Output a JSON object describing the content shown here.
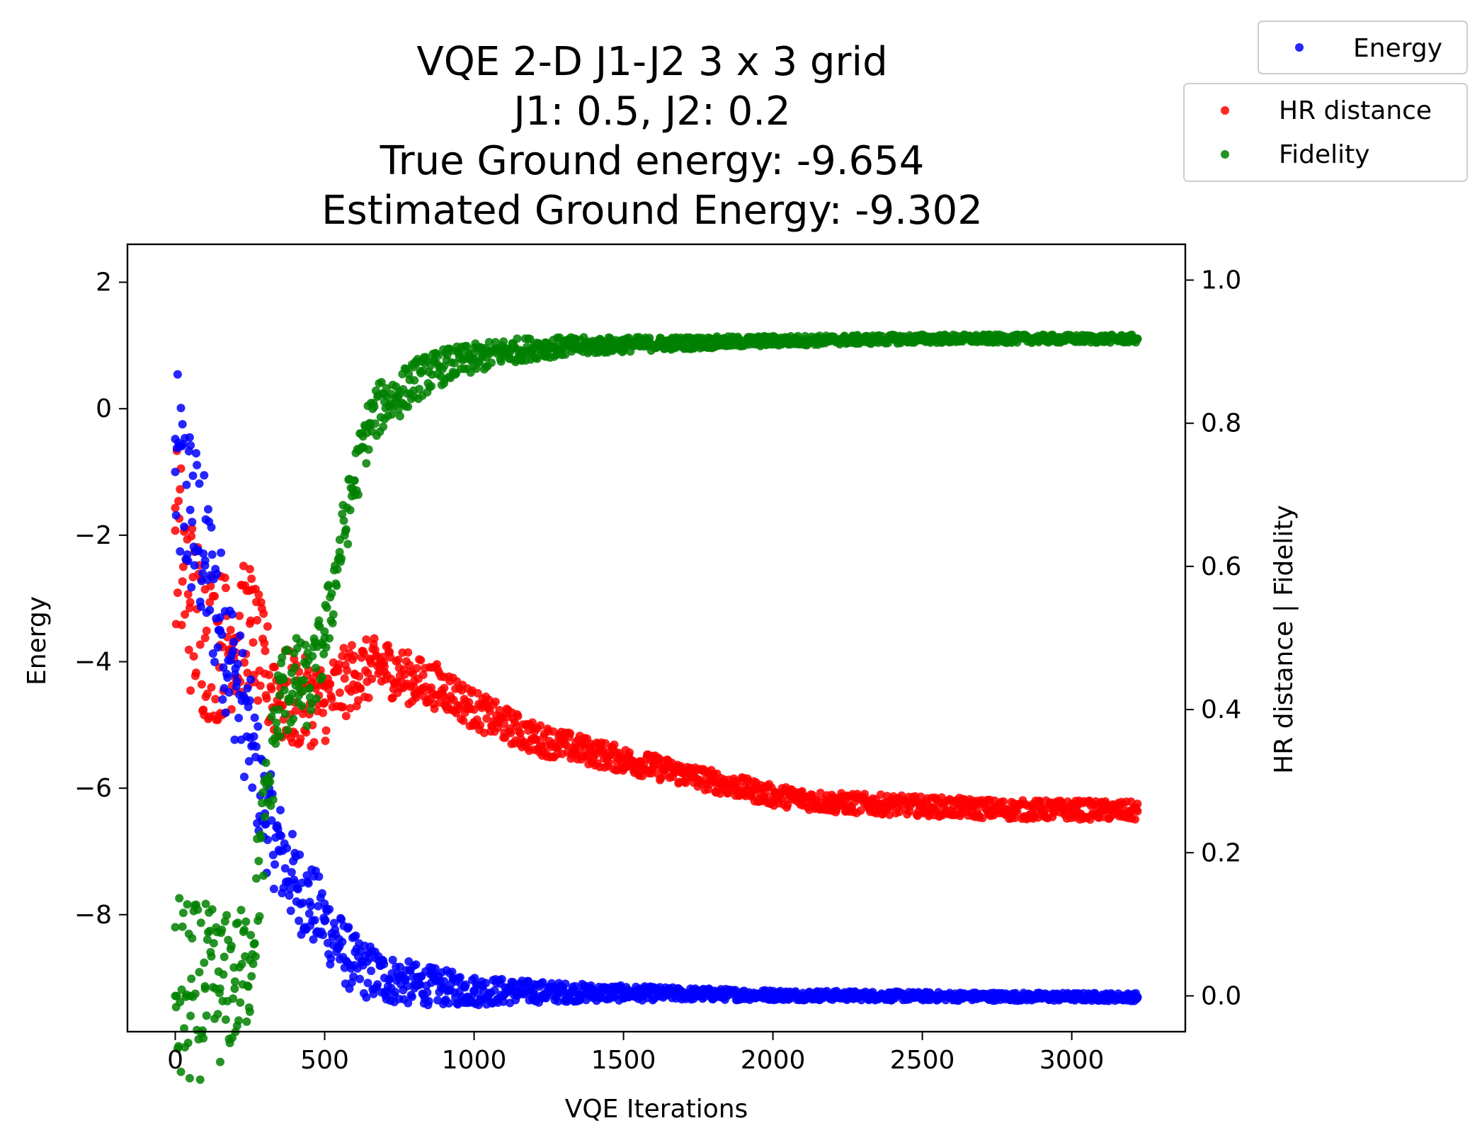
{
  "chart_data": {
    "type": "scatter",
    "title_lines": [
      "VQE 2-D J1-J2 3 x 3 grid",
      "J1: 0.5, J2: 0.2",
      "True Ground energy: -9.654",
      "Estimated Ground Energy: -9.302"
    ],
    "xlabel": "VQE Iterations",
    "ylabel_left": "Energy",
    "ylabel_right": "HR distance | Fidelity",
    "xlim": [
      -160,
      3380
    ],
    "ylim_left": [
      -9.85,
      2.6
    ],
    "ylim_right": [
      -0.05,
      1.05
    ],
    "x_ticks": [
      "0",
      "500",
      "1000",
      "1500",
      "2000",
      "2500",
      "3000"
    ],
    "x_tick_values": [
      0,
      500,
      1000,
      1500,
      2000,
      2500,
      3000
    ],
    "y_left_ticks": [
      "2",
      "0",
      "−2",
      "−4",
      "−6",
      "−8"
    ],
    "y_left_tick_values": [
      2,
      0,
      -2,
      -4,
      -6,
      -8
    ],
    "y_right_ticks": [
      "1.0",
      "0.8",
      "0.6",
      "0.4",
      "0.2",
      "0.0"
    ],
    "y_right_tick_values": [
      1.0,
      0.8,
      0.6,
      0.4,
      0.2,
      0.0
    ],
    "grid": false,
    "legend_top": {
      "placement": "outside-top-right",
      "entries": [
        "Energy"
      ]
    },
    "legend_bottom": {
      "placement": "outside-top-right-below",
      "entries": [
        "HR distance",
        "Fidelity"
      ]
    },
    "series": [
      {
        "name": "Energy",
        "axis": "left",
        "color": "#0000ff",
        "x": [
          0,
          50,
          100,
          150,
          200,
          250,
          300,
          350,
          400,
          450,
          500,
          550,
          600,
          700,
          800,
          900,
          1000,
          1200,
          1500,
          2000,
          2500,
          3000,
          3220
        ],
        "y": [
          -1.0,
          -1.6,
          -2.4,
          -3.3,
          -4.2,
          -5.2,
          -6.4,
          -7.0,
          -7.5,
          -7.8,
          -8.1,
          -8.5,
          -8.8,
          -9.0,
          -9.1,
          -9.15,
          -9.2,
          -9.22,
          -9.24,
          -9.27,
          -9.29,
          -9.3,
          -9.302
        ]
      },
      {
        "name": "HR distance",
        "axis": "right",
        "color": "#ff0000",
        "x": [
          0,
          50,
          100,
          150,
          200,
          250,
          300,
          350,
          400,
          500,
          600,
          700,
          800,
          900,
          1000,
          1100,
          1200,
          1400,
          1600,
          1800,
          2000,
          2200,
          2500,
          2800,
          3000,
          3220
        ],
        "y": [
          0.65,
          0.55,
          0.5,
          0.49,
          0.5,
          0.52,
          0.45,
          0.42,
          0.41,
          0.41,
          0.45,
          0.46,
          0.44,
          0.43,
          0.4,
          0.38,
          0.36,
          0.34,
          0.32,
          0.3,
          0.28,
          0.27,
          0.265,
          0.26,
          0.26,
          0.258
        ]
      },
      {
        "name": "Fidelity",
        "axis": "right",
        "color": "#008000",
        "x": [
          0,
          50,
          100,
          150,
          200,
          250,
          300,
          350,
          400,
          450,
          500,
          550,
          600,
          650,
          700,
          750,
          800,
          900,
          1000,
          1100,
          1200,
          1500,
          2000,
          2500,
          3000,
          3220
        ],
        "y": [
          0.0,
          0.0,
          0.01,
          0.01,
          0.02,
          0.05,
          0.25,
          0.42,
          0.44,
          0.43,
          0.5,
          0.62,
          0.72,
          0.8,
          0.83,
          0.84,
          0.86,
          0.88,
          0.89,
          0.9,
          0.905,
          0.91,
          0.915,
          0.918,
          0.918,
          0.918
        ]
      }
    ]
  }
}
